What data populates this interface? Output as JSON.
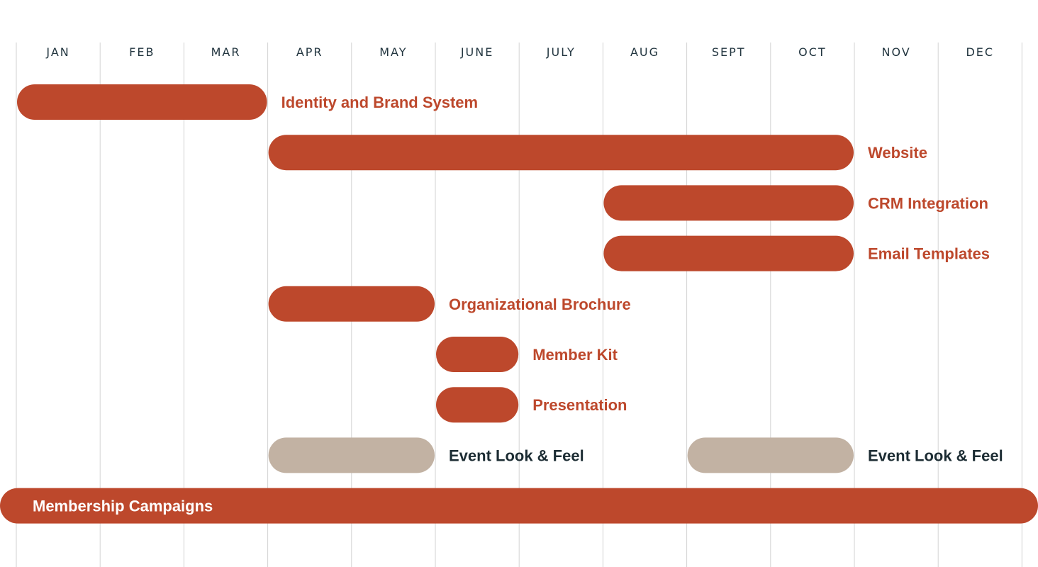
{
  "chart_data": {
    "type": "gantt",
    "months": [
      "JAN",
      "FEB",
      "MAR",
      "APR",
      "MAY",
      "JUNE",
      "JULY",
      "AUG",
      "SEPT",
      "OCT",
      "NOV",
      "DEC"
    ],
    "colors": {
      "primary": "#BD482C",
      "secondary": "#C2B2A3",
      "dark_text": "#1C2C33",
      "white_text": "#FFFFFF",
      "gridline": "#D2D2D2",
      "month_text": "#233640"
    },
    "tasks": [
      {
        "label": "Identity and Brand System",
        "start": 0,
        "end": 3,
        "style": "primary"
      },
      {
        "label": "Website",
        "start": 3,
        "end": 10,
        "style": "primary"
      },
      {
        "label": "CRM Integration",
        "start": 7,
        "end": 10,
        "style": "primary"
      },
      {
        "label": "Email Templates",
        "start": 7,
        "end": 10,
        "style": "primary"
      },
      {
        "label": "Organizational Brochure",
        "start": 3,
        "end": 5,
        "style": "primary"
      },
      {
        "label": "Member Kit",
        "start": 5,
        "end": 6,
        "style": "primary"
      },
      {
        "label": "Presentation",
        "start": 5,
        "end": 6,
        "style": "primary"
      },
      {
        "label": "Event Look & Feel",
        "start": 3,
        "end": 5,
        "style": "secondary"
      },
      {
        "label": "Event Look & Feel",
        "start": 8,
        "end": 10,
        "style": "secondary"
      },
      {
        "label": "Membership Campaigns",
        "start": 0,
        "end": 12,
        "style": "primary",
        "label_inside": true
      }
    ]
  }
}
